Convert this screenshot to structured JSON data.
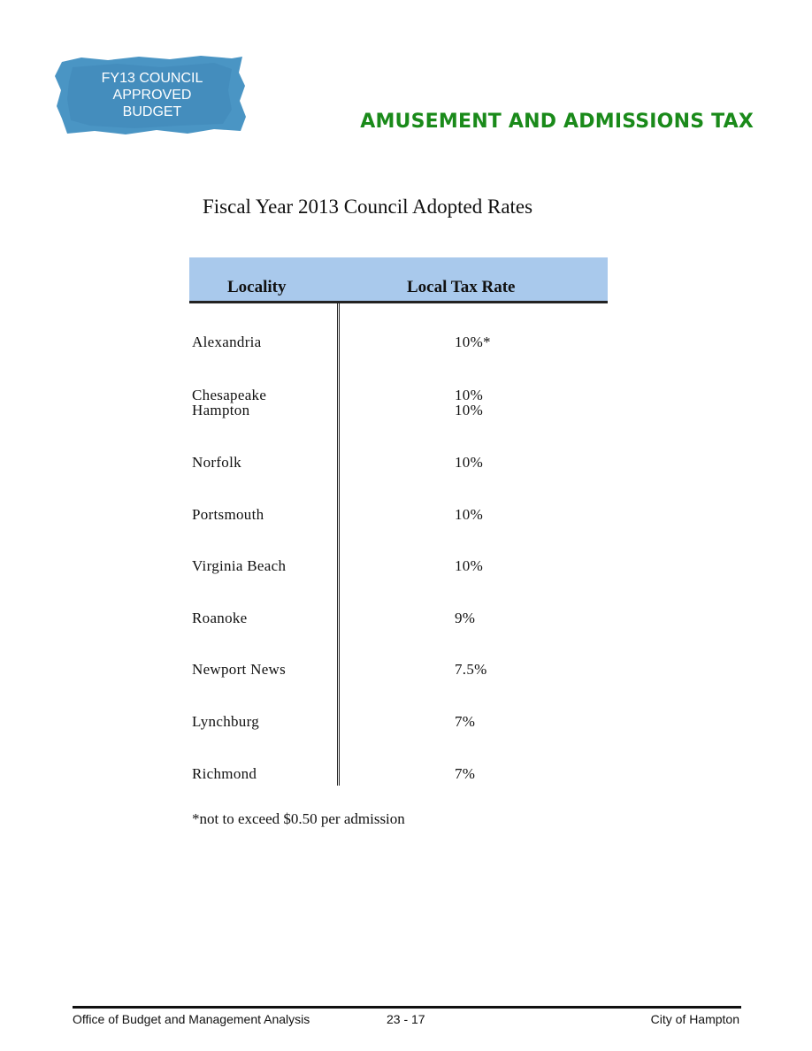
{
  "badge": {
    "lines": [
      "FY13 COUNCIL",
      "APPROVED",
      "BUDGET"
    ],
    "color": "#4a95c4"
  },
  "header": {
    "section_title": "AMUSEMENT AND ADMISSIONS TAX",
    "accent_color": "#1a8a1a"
  },
  "document": {
    "title": "Fiscal Year 2013 Council Adopted Rates"
  },
  "table": {
    "header_color": "#a9c9ec",
    "columns": [
      "Locality",
      "Local Tax Rate"
    ],
    "rows": [
      {
        "locality": "Alexandria",
        "rate": "10%*"
      },
      {
        "locality": "Chesapeake",
        "rate": "10%"
      },
      {
        "locality": "Hampton",
        "rate": "10%"
      },
      {
        "locality": "Norfolk",
        "rate": "10%"
      },
      {
        "locality": "Portsmouth",
        "rate": "10%"
      },
      {
        "locality": "Virginia Beach",
        "rate": "10%"
      },
      {
        "locality": "Roanoke",
        "rate": "9%"
      },
      {
        "locality": "Newport News",
        "rate": "7.5%"
      },
      {
        "locality": "Lynchburg",
        "rate": "7%"
      },
      {
        "locality": "Richmond",
        "rate": "7%"
      }
    ],
    "footnote": "*not to exceed $0.50 per admission"
  },
  "footer": {
    "office": "Office of Budget and Management Analysis",
    "page": "23 - 17",
    "city": "City of Hampton"
  }
}
